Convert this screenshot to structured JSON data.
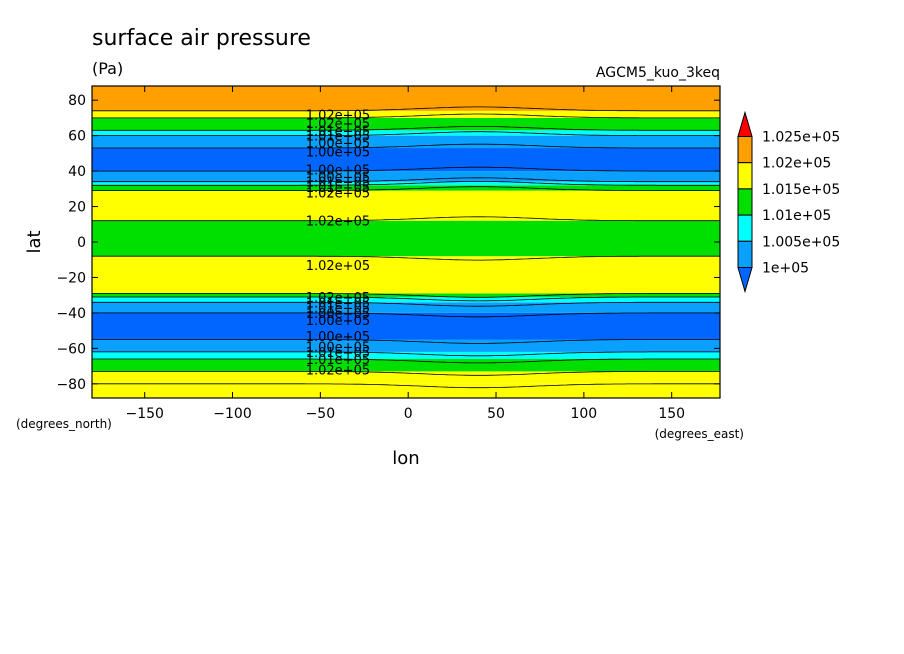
{
  "chart_data": {
    "type": "heatmap",
    "title": "surface air pressure",
    "units": "(Pa)",
    "model_label": "AGCM5_kuo_3keq",
    "xlabel": "lon",
    "ylabel": "lat",
    "x_units": "(degrees_east)",
    "y_units": "(degrees_north)",
    "xlim": [
      -180,
      177.5
    ],
    "ylim": [
      -88,
      88
    ],
    "x_ticks": [
      -150,
      -100,
      -50,
      0,
      50,
      100,
      150
    ],
    "y_ticks": [
      -80,
      -60,
      -40,
      -20,
      0,
      20,
      40,
      60,
      80
    ],
    "x_tick_labels": [
      "−150",
      "−100",
      "−50",
      "0",
      "50",
      "100",
      "150"
    ],
    "y_tick_labels": [
      "−80",
      "−60",
      "−40",
      "−20",
      "0",
      "20",
      "40",
      "60",
      "80"
    ],
    "colorbar": {
      "levels": [
        100000,
        100500,
        101000,
        101500,
        102000,
        102500
      ],
      "labels": [
        "1e+05",
        "1.005e+05",
        "1.01e+05",
        "1.015e+05",
        "1.02e+05",
        "1.025e+05"
      ],
      "colors": [
        "#0066ff",
        "#0aa0ff",
        "#00ffff",
        "#00e000",
        "#ffff00",
        "#ffa000",
        "#ff0000"
      ]
    },
    "bands": [
      {
        "lat_from": -90,
        "lat_to": -80,
        "value": 101700
      },
      {
        "lat_from": -80,
        "lat_to": -73,
        "value": 101700
      },
      {
        "lat_from": -73,
        "lat_to": -66,
        "value": 101200
      },
      {
        "lat_from": -66,
        "lat_to": -62,
        "value": 100800
      },
      {
        "lat_from": -62,
        "lat_to": -55,
        "value": 100300
      },
      {
        "lat_from": -55,
        "lat_to": -40,
        "value": 99800
      },
      {
        "lat_from": -40,
        "lat_to": -34,
        "value": 100300
      },
      {
        "lat_from": -34,
        "lat_to": -31,
        "value": 100800
      },
      {
        "lat_from": -31,
        "lat_to": -29,
        "value": 101200
      },
      {
        "lat_from": -29,
        "lat_to": -8,
        "value": 101700
      },
      {
        "lat_from": -8,
        "lat_to": 12,
        "value": 101200
      },
      {
        "lat_from": 12,
        "lat_to": 29,
        "value": 101700
      },
      {
        "lat_from": 29,
        "lat_to": 32,
        "value": 101200
      },
      {
        "lat_from": 32,
        "lat_to": 34,
        "value": 100800
      },
      {
        "lat_from": 34,
        "lat_to": 40,
        "value": 100300
      },
      {
        "lat_from": 40,
        "lat_to": 53,
        "value": 99800
      },
      {
        "lat_from": 53,
        "lat_to": 60,
        "value": 100300
      },
      {
        "lat_from": 60,
        "lat_to": 63,
        "value": 100800
      },
      {
        "lat_from": 63,
        "lat_to": 70,
        "value": 101200
      },
      {
        "lat_from": 70,
        "lat_to": 74,
        "value": 101700
      },
      {
        "lat_from": 74,
        "lat_to": 90,
        "value": 102200
      }
    ],
    "contour_labels": [
      {
        "lon": -40,
        "lat": 72,
        "text": "1.02e+05"
      },
      {
        "lon": -40,
        "lat": 67,
        "text": "1.02e+05"
      },
      {
        "lon": -40,
        "lat": 63,
        "text": "1.01e+05"
      },
      {
        "lon": -40,
        "lat": 60,
        "text": "1.01e+05"
      },
      {
        "lon": -40,
        "lat": 56,
        "text": "1.00e+05"
      },
      {
        "lon": -40,
        "lat": 51,
        "text": "1.00e+05"
      },
      {
        "lon": -40,
        "lat": 41,
        "text": "1.00e+05"
      },
      {
        "lon": -40,
        "lat": 37,
        "text": "1.00e+05"
      },
      {
        "lon": -40,
        "lat": 34,
        "text": "1.01e+05"
      },
      {
        "lon": -40,
        "lat": 31,
        "text": "1.01e+05"
      },
      {
        "lon": -40,
        "lat": 28,
        "text": "1.02e+05"
      },
      {
        "lon": -40,
        "lat": 12,
        "text": "1.02e+05"
      },
      {
        "lon": -40,
        "lat": -13,
        "text": "1.02e+05"
      },
      {
        "lon": -40,
        "lat": -31,
        "text": "1.02e+05"
      },
      {
        "lon": -40,
        "lat": -34,
        "text": "1.01e+05"
      },
      {
        "lon": -40,
        "lat": -37,
        "text": "1.01e+05"
      },
      {
        "lon": -40,
        "lat": -40,
        "text": "1.00e+05"
      },
      {
        "lon": -40,
        "lat": -44,
        "text": "1.00e+05"
      },
      {
        "lon": -40,
        "lat": -53,
        "text": "1.00e+05"
      },
      {
        "lon": -40,
        "lat": -59,
        "text": "1.00e+05"
      },
      {
        "lon": -40,
        "lat": -62,
        "text": "1.01e+05"
      },
      {
        "lon": -40,
        "lat": -66,
        "text": "1.01e+05"
      },
      {
        "lon": -40,
        "lat": -72,
        "text": "1.02e+05"
      }
    ]
  }
}
